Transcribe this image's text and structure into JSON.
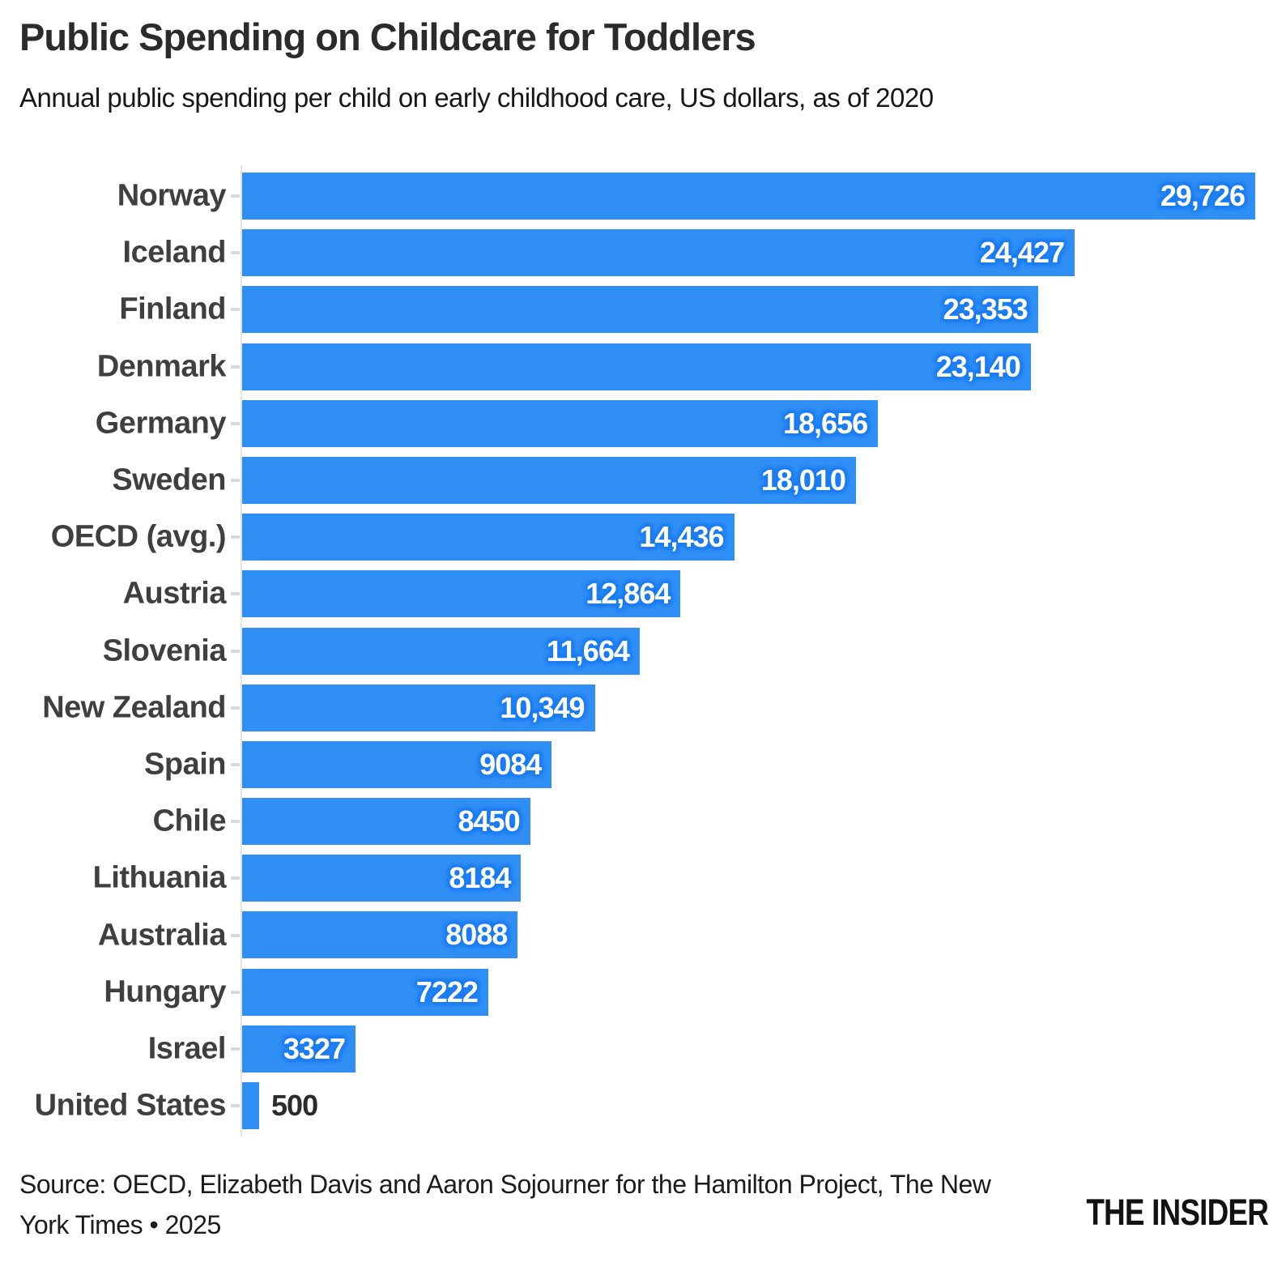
{
  "header": {
    "title": "Public Spending on Childcare for Toddlers",
    "subtitle": "Annual public spending per child on early childhood care, US dollars, as of 2020"
  },
  "chart_data": {
    "type": "bar",
    "orientation": "horizontal",
    "title": "Public Spending on Childcare for Toddlers",
    "subtitle": "Annual public spending per child on early childhood care, US dollars, as of 2020",
    "categories": [
      "Norway",
      "Iceland",
      "Finland",
      "Denmark",
      "Germany",
      "Sweden",
      "OECD (avg.)",
      "Austria",
      "Slovenia",
      "New Zealand",
      "Spain",
      "Chile",
      "Lithuania",
      "Australia",
      "Hungary",
      "Israel",
      "United States"
    ],
    "values": [
      29726,
      24427,
      23353,
      23140,
      18656,
      18010,
      14436,
      12864,
      11664,
      10349,
      9084,
      8450,
      8184,
      8088,
      7222,
      3327,
      500
    ],
    "value_labels": [
      "29,726",
      "24,427",
      "23,353",
      "23,140",
      "18,656",
      "18,010",
      "14,436",
      "12,864",
      "11,664",
      "10,349",
      "9084",
      "8450",
      "8184",
      "8088",
      "7222",
      "3327",
      "500"
    ],
    "xlabel": "",
    "ylabel": "",
    "xlim": [
      0,
      29726
    ],
    "grid": "off",
    "legend": "none",
    "value_label_position": "inside-end, outside for United States",
    "colors": {
      "bar": "#2f8ff4",
      "value_halo": "#1c7cf2",
      "value_text_inside": "#ffffff",
      "value_text_outside": "#2b2b2b",
      "category_label": "#3f3f3f",
      "axis": "#e4e4e4",
      "tick": "#d9d9d9",
      "title": "#2b2b2b"
    }
  },
  "footer": {
    "source": "Source: OECD, Elizabeth Davis and Aaron Sojourner for the Hamilton Project, The New York Times • 2025",
    "logo": "THE INSIDER"
  }
}
